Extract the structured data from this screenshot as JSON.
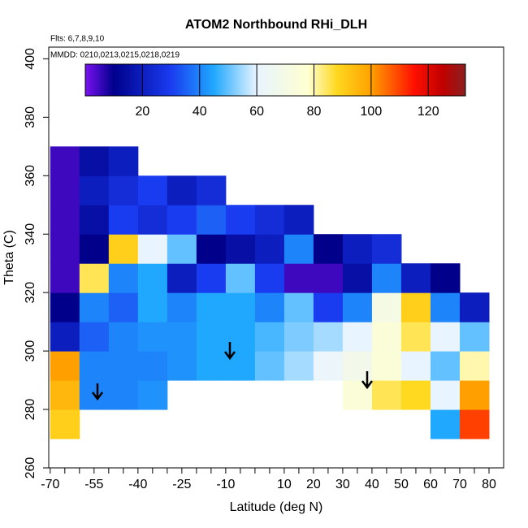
{
  "chart_data": {
    "type": "heatmap",
    "title": "ATOM2 Northbound RHi_DLH",
    "annotations": [
      "Flts: 6,7,8,9,10",
      "MMDD: 0210,0213,0215,0218,0219"
    ],
    "x_label": "Latitude (deg N)",
    "y_label": "Theta (C)",
    "xlim": [
      -70.5,
      85
    ],
    "ylim": [
      260,
      404
    ],
    "xticks": [
      -70,
      -55,
      -40,
      -25,
      -10,
      10,
      20,
      30,
      40,
      50,
      60,
      70,
      80
    ],
    "xminorticks": [
      -65,
      -60,
      -50,
      -45,
      -35,
      -30,
      -20,
      -15,
      -5,
      0,
      5,
      15,
      25,
      35,
      45,
      55,
      65,
      75
    ],
    "yticks": [
      260,
      280,
      300,
      320,
      340,
      360,
      380,
      400
    ],
    "x": [
      -65,
      -55,
      -45,
      -35,
      -25,
      -15,
      -5,
      5,
      15,
      25,
      35,
      45,
      55,
      65,
      75
    ],
    "y": [
      275,
      285,
      295,
      305,
      315,
      325,
      335,
      345,
      355,
      365
    ],
    "values": [
      [
        90,
        null,
        null,
        null,
        null,
        null,
        null,
        null,
        null,
        null,
        null,
        null,
        null,
        45,
        110
      ],
      [
        95,
        40,
        40,
        42,
        null,
        null,
        null,
        null,
        null,
        null,
        75,
        85,
        88,
        60,
        100
      ],
      [
        100,
        40,
        40,
        40,
        42,
        45,
        45,
        50,
        55,
        62,
        68,
        75,
        60,
        50,
        80
      ],
      [
        20,
        35,
        40,
        42,
        42,
        45,
        45,
        48,
        52,
        55,
        60,
        75,
        85,
        60,
        50
      ],
      [
        10,
        40,
        35,
        45,
        40,
        45,
        45,
        40,
        50,
        30,
        40,
        70,
        90,
        40,
        20
      ],
      [
        5,
        85,
        40,
        45,
        20,
        30,
        50,
        30,
        5,
        5,
        15,
        40,
        20,
        10,
        null
      ],
      [
        5,
        10,
        90,
        60,
        50,
        10,
        15,
        20,
        40,
        10,
        20,
        25,
        null,
        null,
        null
      ],
      [
        5,
        15,
        30,
        25,
        30,
        35,
        30,
        25,
        20,
        null,
        null,
        null,
        null,
        null,
        null
      ],
      [
        5,
        20,
        25,
        30,
        20,
        25,
        null,
        null,
        null,
        null,
        null,
        null,
        null,
        null,
        null
      ],
      [
        5,
        15,
        20,
        null,
        null,
        null,
        null,
        null,
        null,
        null,
        null,
        null,
        null,
        null,
        null
      ]
    ],
    "colorbar": {
      "lim": [
        0,
        133
      ],
      "ticks": [
        20,
        40,
        60,
        80,
        100,
        120
      ],
      "stops": [
        [
          0,
          "#7a10f0"
        ],
        [
          10,
          "#00008b"
        ],
        [
          30,
          "#1a3cf0"
        ],
        [
          45,
          "#20a8ff"
        ],
        [
          60,
          "#e8f4ff"
        ],
        [
          78,
          "#ffffd0"
        ],
        [
          88,
          "#ffd820"
        ],
        [
          100,
          "#ffa000"
        ],
        [
          115,
          "#ff1000"
        ],
        [
          125,
          "#c00000"
        ],
        [
          133,
          "#8b2020"
        ]
      ]
    }
  }
}
